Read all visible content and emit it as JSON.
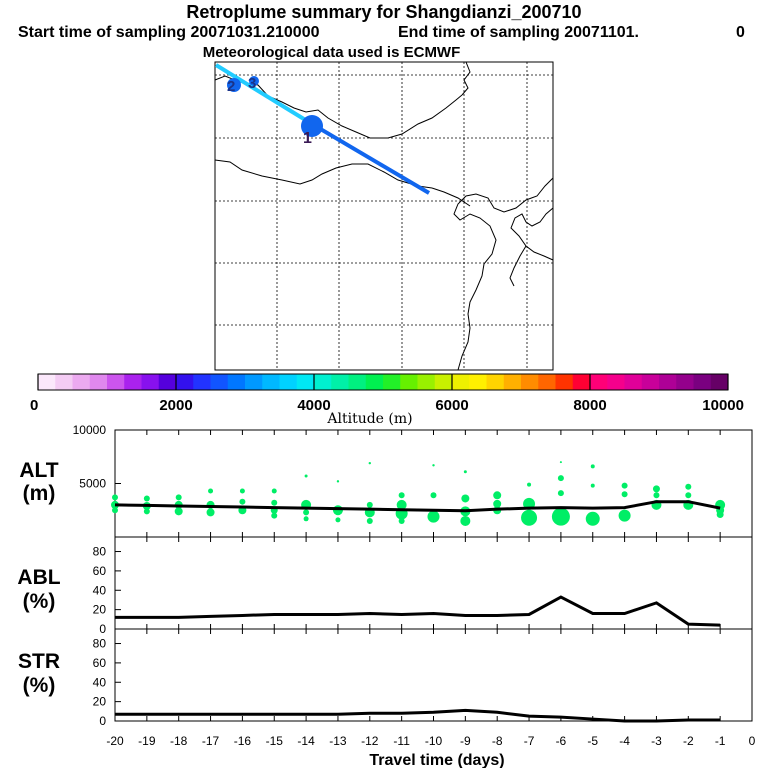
{
  "header": {
    "title": "Retroplume summary for Shangdianzi_200710",
    "start_label": "Start time of sampling 20071031.210000",
    "end_label": "End time of sampling 20071101.",
    "end_value": "0",
    "met_label": "Meteorological data used is ECMWF"
  },
  "colors": {
    "altitude_points": "#00ee66",
    "track_light": "#22ccff",
    "track_dark": "#1166ee",
    "line": "#000000"
  },
  "colorbar": {
    "ticks": [
      "0",
      "2000",
      "4000",
      "6000",
      "8000",
      "10000"
    ],
    "label": "Altitude (m)",
    "range": [
      0,
      10000
    ],
    "colors": [
      "#fbe8fb",
      "#f4ccf4",
      "#ecaaf0",
      "#e088ee",
      "#cc55ee",
      "#aa22ee",
      "#8811ee",
      "#5500dd",
      "#3311ee",
      "#2233ff",
      "#1155ff",
      "#0077ff",
      "#0099ff",
      "#00b8ff",
      "#00d2ff",
      "#00e8f4",
      "#00f0d0",
      "#00f0a8",
      "#00f080",
      "#00f050",
      "#22f028",
      "#66f000",
      "#99f000",
      "#c8f000",
      "#eef000",
      "#fff000",
      "#ffd400",
      "#ffb000",
      "#ff8c00",
      "#ff6600",
      "#ff3300",
      "#ff0033",
      "#ff0077",
      "#f5008c",
      "#e00099",
      "#c8009a",
      "#ae0096",
      "#94008c",
      "#7a0080",
      "#660066"
    ]
  },
  "map": {
    "labels": [
      "1",
      "2",
      "3"
    ]
  },
  "chart_data": [
    {
      "type": "scatter",
      "panel_label": "ALT",
      "unit_label": "(m)",
      "ylim": [
        0,
        10000
      ],
      "yticks": [
        "10000",
        "5000"
      ],
      "line_x": [
        -20,
        -19,
        -18,
        -17,
        -16,
        -15,
        -14,
        -13,
        -12,
        -11,
        -10,
        -9,
        -8,
        -7,
        -6,
        -5,
        -4,
        -3,
        -2,
        -1
      ],
      "line_y": [
        3000,
        2950,
        2900,
        2850,
        2800,
        2750,
        2700,
        2650,
        2600,
        2550,
        2500,
        2450,
        2600,
        2700,
        2750,
        2700,
        2750,
        3300,
        3300,
        2700
      ],
      "points": [
        {
          "x": -20,
          "y": 3700,
          "s": 3
        },
        {
          "x": -20,
          "y": 3000,
          "s": 4
        },
        {
          "x": -20,
          "y": 2500,
          "s": 3
        },
        {
          "x": -19,
          "y": 3600,
          "s": 3
        },
        {
          "x": -19,
          "y": 2900,
          "s": 4
        },
        {
          "x": -19,
          "y": 2400,
          "s": 3
        },
        {
          "x": -18,
          "y": 3700,
          "s": 3
        },
        {
          "x": -18,
          "y": 3000,
          "s": 4
        },
        {
          "x": -18,
          "y": 2400,
          "s": 4
        },
        {
          "x": -17,
          "y": 4300,
          "s": 2.5
        },
        {
          "x": -17,
          "y": 3000,
          "s": 4
        },
        {
          "x": -17,
          "y": 2300,
          "s": 4
        },
        {
          "x": -16,
          "y": 4300,
          "s": 2.5
        },
        {
          "x": -16,
          "y": 3300,
          "s": 3
        },
        {
          "x": -16,
          "y": 2500,
          "s": 4
        },
        {
          "x": -15,
          "y": 4300,
          "s": 2.5
        },
        {
          "x": -15,
          "y": 3200,
          "s": 3
        },
        {
          "x": -15,
          "y": 2500,
          "s": 3.5
        },
        {
          "x": -15,
          "y": 2000,
          "s": 3
        },
        {
          "x": -14,
          "y": 5700,
          "s": 1.5
        },
        {
          "x": -14,
          "y": 3000,
          "s": 5
        },
        {
          "x": -14,
          "y": 2300,
          "s": 3
        },
        {
          "x": -14,
          "y": 1700,
          "s": 2.5
        },
        {
          "x": -13,
          "y": 5200,
          "s": 1.2
        },
        {
          "x": -13,
          "y": 2500,
          "s": 5
        },
        {
          "x": -13,
          "y": 1600,
          "s": 2.5
        },
        {
          "x": -12,
          "y": 6900,
          "s": 1.2
        },
        {
          "x": -12,
          "y": 3000,
          "s": 3
        },
        {
          "x": -12,
          "y": 2300,
          "s": 5
        },
        {
          "x": -12,
          "y": 1500,
          "s": 3
        },
        {
          "x": -11,
          "y": 3900,
          "s": 3
        },
        {
          "x": -11,
          "y": 3000,
          "s": 5
        },
        {
          "x": -11,
          "y": 2200,
          "s": 6
        },
        {
          "x": -11,
          "y": 1500,
          "s": 3
        },
        {
          "x": -10,
          "y": 6700,
          "s": 1.2
        },
        {
          "x": -10,
          "y": 3900,
          "s": 3
        },
        {
          "x": -10,
          "y": 1900,
          "s": 6
        },
        {
          "x": -9,
          "y": 6100,
          "s": 1.5
        },
        {
          "x": -9,
          "y": 3600,
          "s": 4
        },
        {
          "x": -9,
          "y": 2400,
          "s": 5
        },
        {
          "x": -9,
          "y": 1500,
          "s": 5
        },
        {
          "x": -8,
          "y": 3900,
          "s": 4
        },
        {
          "x": -8,
          "y": 3100,
          "s": 4
        },
        {
          "x": -8,
          "y": 2500,
          "s": 4
        },
        {
          "x": -7,
          "y": 4900,
          "s": 2
        },
        {
          "x": -7,
          "y": 3100,
          "s": 6
        },
        {
          "x": -7,
          "y": 1800,
          "s": 8
        },
        {
          "x": -6,
          "y": 7000,
          "s": 1
        },
        {
          "x": -6,
          "y": 5500,
          "s": 3
        },
        {
          "x": -6,
          "y": 4100,
          "s": 3
        },
        {
          "x": -6,
          "y": 1900,
          "s": 9
        },
        {
          "x": -5,
          "y": 6600,
          "s": 2
        },
        {
          "x": -5,
          "y": 4800,
          "s": 2
        },
        {
          "x": -5,
          "y": 1700,
          "s": 7
        },
        {
          "x": -4,
          "y": 4800,
          "s": 3
        },
        {
          "x": -4,
          "y": 4000,
          "s": 3
        },
        {
          "x": -4,
          "y": 2000,
          "s": 6
        },
        {
          "x": -3,
          "y": 4500,
          "s": 3.5
        },
        {
          "x": -3,
          "y": 3900,
          "s": 3
        },
        {
          "x": -3,
          "y": 3000,
          "s": 5
        },
        {
          "x": -2,
          "y": 4700,
          "s": 3
        },
        {
          "x": -2,
          "y": 3900,
          "s": 3
        },
        {
          "x": -2,
          "y": 3000,
          "s": 5
        },
        {
          "x": -1,
          "y": 3000,
          "s": 5
        },
        {
          "x": -1,
          "y": 2500,
          "s": 4
        },
        {
          "x": -1,
          "y": 2100,
          "s": 3.5
        }
      ]
    },
    {
      "type": "line",
      "panel_label": "ABL",
      "unit_label": "(%)",
      "ylim": [
        0,
        95
      ],
      "yticks": [
        "80",
        "60",
        "40",
        "20",
        "0"
      ],
      "x": [
        -20,
        -19,
        -18,
        -17,
        -16,
        -15,
        -14,
        -13,
        -12,
        -11,
        -10,
        -9,
        -8,
        -7,
        -6,
        -5,
        -4,
        -3,
        -2,
        -1
      ],
      "y": [
        12,
        12,
        12,
        13,
        14,
        15,
        15,
        15,
        16,
        15,
        16,
        14,
        14,
        15,
        33,
        16,
        16,
        27,
        5,
        4
      ]
    },
    {
      "type": "line",
      "panel_label": "STR",
      "unit_label": "(%)",
      "ylim": [
        0,
        95
      ],
      "yticks": [
        "80",
        "60",
        "40",
        "20",
        "0"
      ],
      "x": [
        -20,
        -19,
        -18,
        -17,
        -16,
        -15,
        -14,
        -13,
        -12,
        -11,
        -10,
        -9,
        -8,
        -7,
        -6,
        -5,
        -4,
        -3,
        -2,
        -1
      ],
      "y": [
        7,
        7,
        7,
        7,
        7,
        7,
        7,
        7,
        8,
        8,
        9,
        11,
        9,
        5,
        4,
        2,
        0,
        0,
        1,
        1
      ]
    }
  ],
  "xaxis": {
    "label": "Travel time (days)",
    "ticks": [
      "-20",
      "-19",
      "-18",
      "-17",
      "-16",
      "-15",
      "-14",
      "-13",
      "-12",
      "-11",
      "-10",
      "-9",
      "-8",
      "-7",
      "-6",
      "-5",
      "-4",
      "-3",
      "-2",
      "-1",
      "0"
    ],
    "range": [
      -20,
      0
    ]
  }
}
